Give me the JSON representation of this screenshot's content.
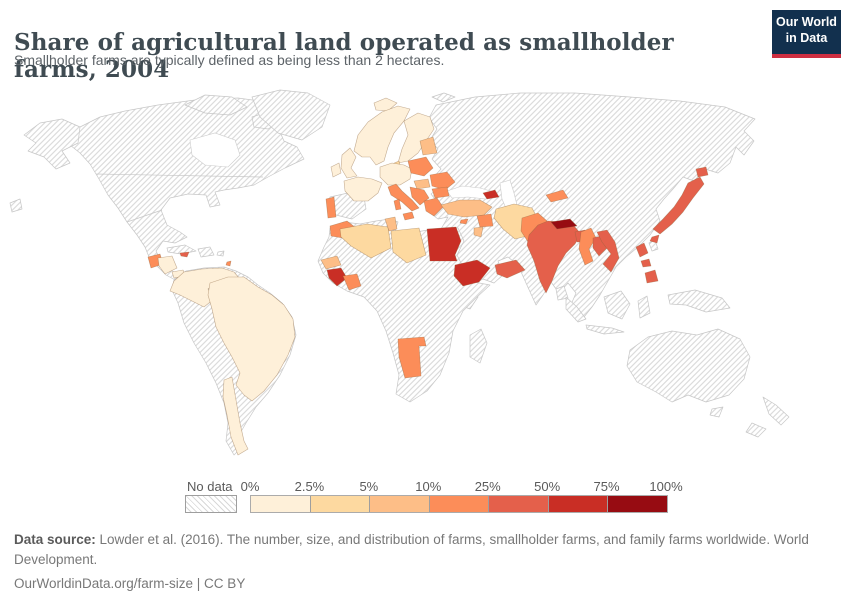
{
  "header": {
    "title": "Share of agricultural land operated as smallholder farms, 2004",
    "subtitle": "Smallholder farms are typically defined as being less than 2 hectares."
  },
  "logo": {
    "line1": "Our World",
    "line2": "in Data",
    "bg_color": "#12304e",
    "accent_color": "#cf2e41"
  },
  "legend": {
    "no_data_label": "No data",
    "tick_labels": [
      "0%",
      "2.5%",
      "5%",
      "10%",
      "25%",
      "50%",
      "75%",
      "100%"
    ]
  },
  "footer": {
    "source_label": "Data source:",
    "source_text": " Lowder et al. (2016). The number, size, and distribution of farms, smallholder farms, and family farms worldwide. World Development.",
    "link_text": "OurWorldinData.org/farm-size | CC BY"
  },
  "chart_data": {
    "type": "choropleth",
    "title": "Share of agricultural land operated as smallholder farms",
    "year": 2004,
    "unit": "share of agricultural land (%)",
    "legend_position": "bottom",
    "bins": [
      {
        "label": "0–2.5%",
        "color": "#fef0d9"
      },
      {
        "label": "2.5–5%",
        "color": "#fdd9a0"
      },
      {
        "label": "5–10%",
        "color": "#fdbe87"
      },
      {
        "label": "10–25%",
        "color": "#fc8d59"
      },
      {
        "label": "25–50%",
        "color": "#e4604b"
      },
      {
        "label": "50–75%",
        "color": "#c92e25"
      },
      {
        "label": "75–100%",
        "color": "#970c12"
      }
    ],
    "countries": {
      "iceland": {
        "name": "Iceland",
        "bin": 0
      },
      "norway-sweden": {
        "name": "Norway & Sweden",
        "bin": 0
      },
      "finland": {
        "name": "Finland",
        "bin": 0
      },
      "uk": {
        "name": "United Kingdom",
        "bin": 0
      },
      "ireland": {
        "name": "Ireland",
        "bin": 0
      },
      "france": {
        "name": "France",
        "bin": 0
      },
      "germany": {
        "name": "Germany & Central Europe",
        "bin": 0
      },
      "denmark": {
        "name": "Denmark",
        "bin": 1
      },
      "baltics": {
        "name": "Baltic states",
        "bin": 2
      },
      "poland": {
        "name": "Poland",
        "bin": 3
      },
      "hungary": {
        "name": "Hungary",
        "bin": 2
      },
      "romania": {
        "name": "Romania",
        "bin": 3
      },
      "balkans": {
        "name": "Western Balkans",
        "bin": 3
      },
      "bulgaria": {
        "name": "Bulgaria",
        "bin": 3
      },
      "greece": {
        "name": "Greece",
        "bin": 3
      },
      "italy": {
        "name": "Italy",
        "bin": 3
      },
      "sicily": {
        "name": "Italy (Sicily)",
        "bin": 3
      },
      "sardinia": {
        "name": "Italy (Sardinia)",
        "bin": 3
      },
      "portugal": {
        "name": "Portugal",
        "bin": 3
      },
      "turkey": {
        "name": "Turkey",
        "bin": 2
      },
      "georgia": {
        "name": "Georgia",
        "bin": 5
      },
      "cyprus": {
        "name": "Cyprus",
        "bin": 3
      },
      "syria": {
        "name": "Syria",
        "bin": 3
      },
      "jordan": {
        "name": "Jordan",
        "bin": 2
      },
      "iran": {
        "name": "Iran",
        "bin": 1
      },
      "pakistan": {
        "name": "Pakistan",
        "bin": 3
      },
      "kyrgyzstan": {
        "name": "Kyrgyzstan",
        "bin": 3
      },
      "india": {
        "name": "India",
        "bin": 4
      },
      "nepal": {
        "name": "Nepal",
        "bin": 6
      },
      "bangladesh": {
        "name": "Bangladesh",
        "bin": 4
      },
      "myanmar": {
        "name": "Myanmar",
        "bin": 3
      },
      "laos": {
        "name": "Laos",
        "bin": 4
      },
      "vietnam": {
        "name": "Vietnam",
        "bin": 4
      },
      "japan": {
        "name": "Japan",
        "bin": 4
      },
      "japan-hokkaido": {
        "name": "Japan (Hokkaido)",
        "bin": 4
      },
      "japan-kyushu": {
        "name": "Japan (Kyushu)",
        "bin": 4
      },
      "philippines-luzon": {
        "name": "Philippines",
        "bin": 4
      },
      "philippines-visayas": {
        "name": "Philippines",
        "bin": 4
      },
      "philippines-mindanao": {
        "name": "Philippines",
        "bin": 4
      },
      "yemen": {
        "name": "Yemen",
        "bin": 4
      },
      "egypt": {
        "name": "Egypt",
        "bin": 5
      },
      "ethiopia": {
        "name": "Ethiopia",
        "bin": 5
      },
      "guinea": {
        "name": "Guinea & Sierra Leone",
        "bin": 5
      },
      "senegal": {
        "name": "Senegal",
        "bin": 2
      },
      "cote-divoire": {
        "name": "Côte d'Ivoire",
        "bin": 3
      },
      "morocco": {
        "name": "Morocco",
        "bin": 3
      },
      "algeria": {
        "name": "Algeria",
        "bin": 1
      },
      "tunisia": {
        "name": "Tunisia",
        "bin": 2
      },
      "libya": {
        "name": "Libya",
        "bin": 1
      },
      "namibia": {
        "name": "Namibia",
        "bin": 3
      },
      "guatemala": {
        "name": "Guatemala",
        "bin": 3
      },
      "honduras": {
        "name": "Honduras & Nicaragua",
        "bin": 0
      },
      "panama": {
        "name": "Panama",
        "bin": 0
      },
      "jamaica": {
        "name": "Jamaica",
        "bin": 4
      },
      "antilles": {
        "name": "Lesser Antilles",
        "bin": 3
      },
      "colombia": {
        "name": "Colombia, Venezuela & Ecuador",
        "bin": 0
      },
      "brazil": {
        "name": "Brazil",
        "bin": 0
      },
      "chile": {
        "name": "Chile",
        "bin": 0
      }
    },
    "no_data_countries": [
      "United States",
      "Canada",
      "Mexico",
      "Greenland",
      "Cuba",
      "Haiti",
      "Dominican Republic",
      "Peru",
      "Bolivia",
      "Paraguay",
      "Argentina",
      "Uruguay",
      "Guyana",
      "Suriname",
      "Spain",
      "Ukraine",
      "Belarus",
      "Russia",
      "Kazakhstan",
      "China",
      "Mongolia",
      "Saudi Arabia",
      "Iraq",
      "Afghanistan",
      "Thailand",
      "Cambodia",
      "Malaysia",
      "Indonesia",
      "Papua New Guinea",
      "Australia",
      "New Zealand",
      "South Korea",
      "North Korea",
      "Sri Lanka",
      "Madagascar",
      "South Africa",
      "Botswana",
      "Mozambique",
      "Tanzania",
      "Kenya",
      "Nigeria",
      "Ghana",
      "Mali",
      "Niger",
      "Chad",
      "Sudan",
      "Democratic Republic of Congo",
      "Angola",
      "Zambia",
      "Zimbabwe"
    ]
  }
}
